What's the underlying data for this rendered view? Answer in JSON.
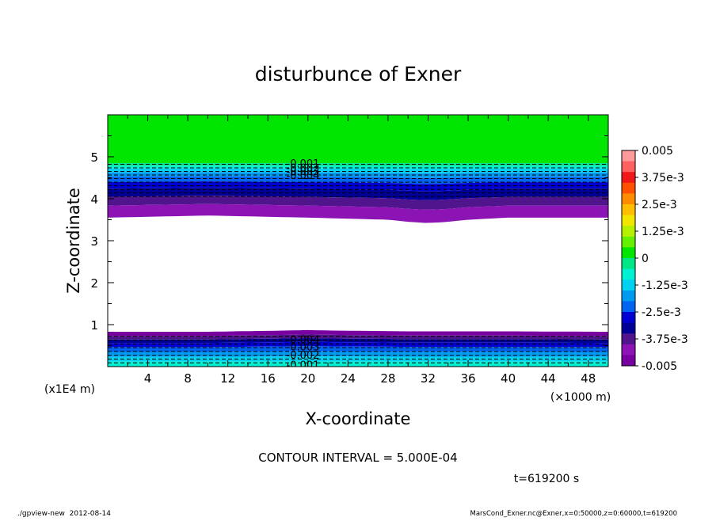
{
  "chart_data": {
    "type": "heatmap",
    "subtype": "filled-contour",
    "title": "disturbunce of Exner",
    "xlabel": "X-coordinate",
    "ylabel": "Z-coordinate",
    "x_unit_label": "(×1000 m)",
    "y_unit_label": "(x1E4 m)",
    "x_ticks": [
      4,
      8,
      12,
      16,
      20,
      24,
      28,
      32,
      36,
      40,
      44,
      48
    ],
    "y_ticks": [
      1,
      2,
      3,
      4,
      5
    ],
    "xlim": [
      0,
      50
    ],
    "ylim": [
      0,
      6
    ],
    "colorbar": {
      "labels": [
        "0.005",
        "3.75e-3",
        "2.5e-3",
        "1.25e-3",
        "0",
        "-1.25e-3",
        "-2.5e-3",
        "-3.75e-3",
        "-0.005"
      ],
      "range": [
        -0.005,
        0.005
      ],
      "colors": [
        "#ff9a9a",
        "#ff6060",
        "#f01818",
        "#ff5000",
        "#ff8c00",
        "#ffbe00",
        "#f2e600",
        "#b4f000",
        "#64f000",
        "#00e600",
        "#00e687",
        "#00f0d2",
        "#00d2f0",
        "#009bf0",
        "#0064f0",
        "#0000d2",
        "#000096",
        "#50148c",
        "#8c14b4",
        "#7800a0"
      ]
    },
    "series": [
      {
        "name": "upper band",
        "x": [
          0,
          10,
          20,
          28,
          30,
          32,
          34,
          36,
          40,
          50
        ],
        "lower_boundary_z": [
          3.55,
          3.6,
          3.55,
          3.5,
          3.45,
          3.42,
          3.45,
          3.5,
          3.55,
          3.55
        ],
        "zero_contour_z": 4.85,
        "min_value": -0.005
      },
      {
        "name": "lower band",
        "x": [
          0,
          10,
          18,
          20,
          22,
          30,
          40,
          50
        ],
        "upper_boundary_z": [
          0.83,
          0.83,
          0.86,
          0.87,
          0.86,
          0.84,
          0.84,
          0.83
        ],
        "min_value": -0.005
      }
    ],
    "contour_interval_text": "CONTOUR INTERVAL = 5.000E-04",
    "annotations": [
      "-0.001",
      "-0.002",
      "-0.003",
      "-0.004",
      "-0.004",
      "-0.003",
      "-0.002",
      "-0.001"
    ],
    "time_label": "t=619200 s"
  },
  "footer": {
    "left": "./gpview-new  2012-08-14",
    "right": "MarsCond_Exner.nc@Exner,x=0:50000,z=0:60000,t=619200"
  }
}
